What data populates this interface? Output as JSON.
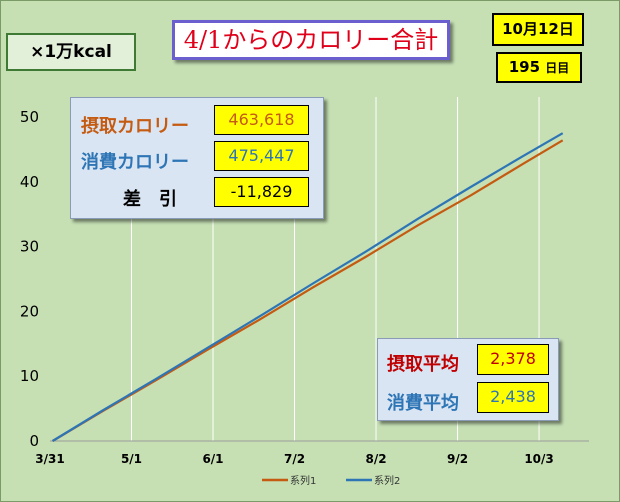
{
  "header": {
    "title": "4/1からのカロリー合計",
    "unit": "×1万kcal",
    "date": "10月12日",
    "days_number": "195",
    "days_unit": "日目"
  },
  "summary": {
    "intake_label": "摂取カロリー",
    "intake_value": "463,618",
    "burn_label": "消費カロリー",
    "burn_value": "475,447",
    "diff_label": "差　引",
    "diff_value": "-11,829"
  },
  "averages": {
    "intake_label": "摂取平均",
    "intake_value": "2,378",
    "burn_label": "消費平均",
    "burn_value": "2,438"
  },
  "colors": {
    "series1": "#c55a11",
    "series2": "#2e75b6",
    "plot_background": "#c6e0b4",
    "gridline": "#ffffff"
  },
  "chart_data": {
    "type": "line",
    "x_tick_labels": [
      "3/31",
      "5/1",
      "6/1",
      "7/2",
      "8/2",
      "9/2",
      "10/3"
    ],
    "x_days": [
      0,
      31,
      62,
      93,
      124,
      155,
      186
    ],
    "xlim": [
      0,
      205
    ],
    "ylim": [
      0,
      50
    ],
    "y_ticks": [
      0,
      10,
      20,
      30,
      40,
      50
    ],
    "grid": "vertical",
    "legend_position": "bottom",
    "series": [
      {
        "name": "系列1",
        "x": [
          1,
          20,
          40,
          60,
          80,
          100,
          120,
          140,
          160,
          180,
          195
        ],
        "values": [
          0,
          4.6,
          9.3,
          14.1,
          18.8,
          23.7,
          28.4,
          33.3,
          37.9,
          42.8,
          46.4
        ]
      },
      {
        "name": "系列2",
        "x": [
          1,
          20,
          40,
          60,
          80,
          100,
          120,
          140,
          160,
          180,
          195
        ],
        "values": [
          0,
          4.7,
          9.5,
          14.4,
          19.3,
          24.3,
          29.2,
          34.3,
          39.2,
          44.0,
          47.5
        ]
      }
    ]
  }
}
